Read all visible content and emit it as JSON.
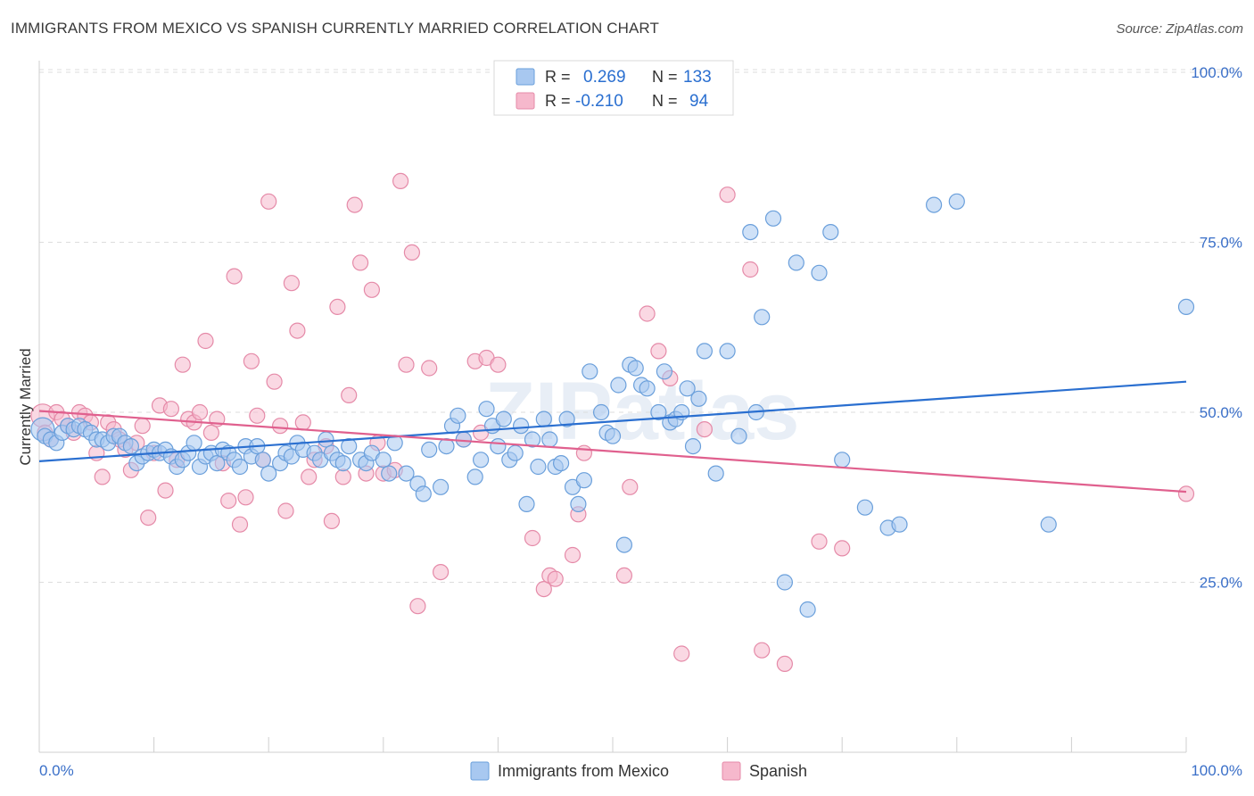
{
  "title": "IMMIGRANTS FROM MEXICO VS SPANISH CURRENTLY MARRIED CORRELATION CHART",
  "source": "Source: ZipAtlas.com",
  "watermark": "ZIPatlas",
  "colors": {
    "blue_fill": "#a8c8f0",
    "blue_stroke": "#6a9fdb",
    "blue_line": "#2a6fd0",
    "pink_fill": "#f6b8cc",
    "pink_stroke": "#e58aa8",
    "pink_line": "#e0608e",
    "tick_label": "#3a6fc8",
    "grid": "#dddddd"
  },
  "legend_top": {
    "rows": [
      {
        "r_label": "R =",
        "r_value": "0.269",
        "n_label": "N =",
        "n_value": "133"
      },
      {
        "r_label": "R =",
        "r_value": "-0.210",
        "n_label": "N =",
        "n_value": "94"
      }
    ]
  },
  "legend_bottom": [
    "Immigrants from Mexico",
    "Spanish"
  ],
  "chart_data": {
    "type": "scatter",
    "xlabel": "",
    "ylabel": "Currently Married",
    "xlim": [
      0,
      100
    ],
    "ylim": [
      0,
      105
    ],
    "x_tick_labels": [
      "0.0%",
      "100.0%"
    ],
    "y_ticks": [
      25,
      50,
      75,
      100
    ],
    "y_tick_labels": [
      "25.0%",
      "50.0%",
      "75.0%",
      "100.0%"
    ],
    "grid": "horizontal dashed",
    "legend_placement": "bottom",
    "series": [
      {
        "name": "Immigrants from Mexico",
        "r": 0.269,
        "n": 133,
        "trend": [
          [
            0,
            42.8
          ],
          [
            100,
            54.5
          ]
        ],
        "points": [
          [
            0.3,
            47.5
          ],
          [
            0.5,
            46.5
          ],
          [
            1,
            46
          ],
          [
            1.5,
            45.5
          ],
          [
            2,
            47
          ],
          [
            2.5,
            48
          ],
          [
            3,
            47.5
          ],
          [
            3.5,
            48
          ],
          [
            4,
            47.5
          ],
          [
            4.5,
            47
          ],
          [
            5,
            46
          ],
          [
            5.5,
            46
          ],
          [
            6,
            45.5
          ],
          [
            6.5,
            46.5
          ],
          [
            7,
            46.5
          ],
          [
            7.5,
            45.5
          ],
          [
            8,
            45
          ],
          [
            8.5,
            42.5
          ],
          [
            9,
            43.5
          ],
          [
            9.5,
            44
          ],
          [
            10,
            44.5
          ],
          [
            10.5,
            44
          ],
          [
            11,
            44.5
          ],
          [
            11.5,
            43.5
          ],
          [
            12,
            42
          ],
          [
            12.5,
            43
          ],
          [
            13,
            44
          ],
          [
            13.5,
            45.5
          ],
          [
            14,
            42
          ],
          [
            14.5,
            43.5
          ],
          [
            15,
            44
          ],
          [
            15.5,
            42.5
          ],
          [
            16,
            44.5
          ],
          [
            16.5,
            44
          ],
          [
            17,
            43
          ],
          [
            17.5,
            42
          ],
          [
            18,
            45
          ],
          [
            18.5,
            43.5
          ],
          [
            19,
            45
          ],
          [
            19.5,
            43
          ],
          [
            20,
            41
          ],
          [
            21,
            42.5
          ],
          [
            21.5,
            44
          ],
          [
            22,
            43.5
          ],
          [
            22.5,
            45.5
          ],
          [
            23,
            44.5
          ],
          [
            24,
            44
          ],
          [
            24.5,
            43
          ],
          [
            25,
            46
          ],
          [
            25.5,
            44
          ],
          [
            26,
            43
          ],
          [
            26.5,
            42.5
          ],
          [
            27,
            45
          ],
          [
            28,
            43
          ],
          [
            28.5,
            42.5
          ],
          [
            29,
            44
          ],
          [
            30,
            43
          ],
          [
            30.5,
            41
          ],
          [
            31,
            45.5
          ],
          [
            32,
            41
          ],
          [
            33,
            39.5
          ],
          [
            33.5,
            38
          ],
          [
            34,
            44.5
          ],
          [
            35,
            39
          ],
          [
            35.5,
            45
          ],
          [
            36,
            48
          ],
          [
            36.5,
            49.5
          ],
          [
            37,
            46
          ],
          [
            38,
            40.5
          ],
          [
            38.5,
            43
          ],
          [
            39,
            50.5
          ],
          [
            39.5,
            48
          ],
          [
            40,
            45
          ],
          [
            40.5,
            49
          ],
          [
            41,
            43
          ],
          [
            41.5,
            44
          ],
          [
            42,
            48
          ],
          [
            42.5,
            36.5
          ],
          [
            43,
            46
          ],
          [
            43.5,
            42
          ],
          [
            44,
            49
          ],
          [
            44.5,
            46
          ],
          [
            45,
            42
          ],
          [
            45.5,
            42.5
          ],
          [
            46,
            49
          ],
          [
            46.5,
            39
          ],
          [
            47,
            36.5
          ],
          [
            47.5,
            40
          ],
          [
            48,
            56
          ],
          [
            49,
            50
          ],
          [
            49.5,
            47
          ],
          [
            50,
            46.5
          ],
          [
            50.5,
            54
          ],
          [
            51,
            30.5
          ],
          [
            51.5,
            57
          ],
          [
            52,
            56.5
          ],
          [
            52.5,
            54
          ],
          [
            53,
            53.5
          ],
          [
            54,
            50
          ],
          [
            54.5,
            56
          ],
          [
            55,
            48.5
          ],
          [
            55.5,
            49
          ],
          [
            56,
            50
          ],
          [
            56.5,
            53.5
          ],
          [
            57,
            45
          ],
          [
            57.5,
            52
          ],
          [
            58,
            59
          ],
          [
            59,
            41
          ],
          [
            60,
            59
          ],
          [
            61,
            46.5
          ],
          [
            62,
            76.5
          ],
          [
            62.5,
            50
          ],
          [
            63,
            64
          ],
          [
            64,
            78.5
          ],
          [
            65,
            25
          ],
          [
            66,
            72
          ],
          [
            67,
            21
          ],
          [
            68,
            70.5
          ],
          [
            69,
            76.5
          ],
          [
            70,
            43
          ],
          [
            72,
            36
          ],
          [
            74,
            33
          ],
          [
            75,
            33.5
          ],
          [
            78,
            80.5
          ],
          [
            80,
            81
          ],
          [
            88,
            33.5
          ],
          [
            100,
            65.5
          ]
        ]
      },
      {
        "name": "Spanish",
        "r": -0.21,
        "n": 94,
        "trend": [
          [
            0,
            50.2
          ],
          [
            100,
            38.3
          ]
        ],
        "points": [
          [
            0.3,
            49.5
          ],
          [
            0.5,
            47
          ],
          [
            1,
            46
          ],
          [
            1.5,
            50
          ],
          [
            2,
            49
          ],
          [
            2.5,
            48
          ],
          [
            3,
            47
          ],
          [
            3.5,
            50
          ],
          [
            4,
            49.5
          ],
          [
            4.5,
            48.5
          ],
          [
            5,
            44
          ],
          [
            5.5,
            40.5
          ],
          [
            6,
            48.5
          ],
          [
            6.5,
            47.5
          ],
          [
            7,
            46
          ],
          [
            7.5,
            44.5
          ],
          [
            8,
            41.5
          ],
          [
            8.5,
            45.5
          ],
          [
            9,
            48
          ],
          [
            9.5,
            34.5
          ],
          [
            10,
            44
          ],
          [
            10.5,
            51
          ],
          [
            11,
            38.5
          ],
          [
            11.5,
            50.5
          ],
          [
            12,
            43
          ],
          [
            12.5,
            57
          ],
          [
            13,
            49
          ],
          [
            13.5,
            48.5
          ],
          [
            14,
            50
          ],
          [
            14.5,
            60.5
          ],
          [
            15,
            47
          ],
          [
            15.5,
            49
          ],
          [
            16,
            42.5
          ],
          [
            16.5,
            37
          ],
          [
            17,
            70
          ],
          [
            17.5,
            33.5
          ],
          [
            18,
            37.5
          ],
          [
            18.5,
            57.5
          ],
          [
            19,
            49.5
          ],
          [
            19.5,
            43
          ],
          [
            20,
            81
          ],
          [
            20.5,
            54.5
          ],
          [
            21,
            48
          ],
          [
            21.5,
            35.5
          ],
          [
            22,
            69
          ],
          [
            22.5,
            62
          ],
          [
            23,
            48.5
          ],
          [
            23.5,
            40.5
          ],
          [
            24,
            43
          ],
          [
            25,
            45
          ],
          [
            25.5,
            34
          ],
          [
            26,
            65.5
          ],
          [
            26.5,
            40.5
          ],
          [
            27,
            52.5
          ],
          [
            27.5,
            80.5
          ],
          [
            28,
            72
          ],
          [
            28.5,
            41
          ],
          [
            29,
            68
          ],
          [
            29.5,
            45.5
          ],
          [
            30,
            41
          ],
          [
            31,
            41.5
          ],
          [
            31.5,
            84
          ],
          [
            32,
            57
          ],
          [
            32.5,
            73.5
          ],
          [
            33,
            21.5
          ],
          [
            34,
            56.5
          ],
          [
            35,
            26.5
          ],
          [
            37,
            46
          ],
          [
            38,
            57.5
          ],
          [
            38.5,
            47
          ],
          [
            39,
            58
          ],
          [
            40,
            57
          ],
          [
            43,
            31.5
          ],
          [
            44,
            24
          ],
          [
            44.5,
            26
          ],
          [
            45,
            25.5
          ],
          [
            46.5,
            29
          ],
          [
            47,
            35
          ],
          [
            47.5,
            44
          ],
          [
            51,
            26
          ],
          [
            51.5,
            39
          ],
          [
            53,
            64.5
          ],
          [
            54,
            59
          ],
          [
            55,
            55
          ],
          [
            56,
            14.5
          ],
          [
            58,
            47.5
          ],
          [
            60,
            82
          ],
          [
            62,
            71
          ],
          [
            63,
            15
          ],
          [
            65,
            13
          ],
          [
            68,
            31
          ],
          [
            70,
            30
          ],
          [
            100,
            38
          ]
        ]
      }
    ]
  }
}
